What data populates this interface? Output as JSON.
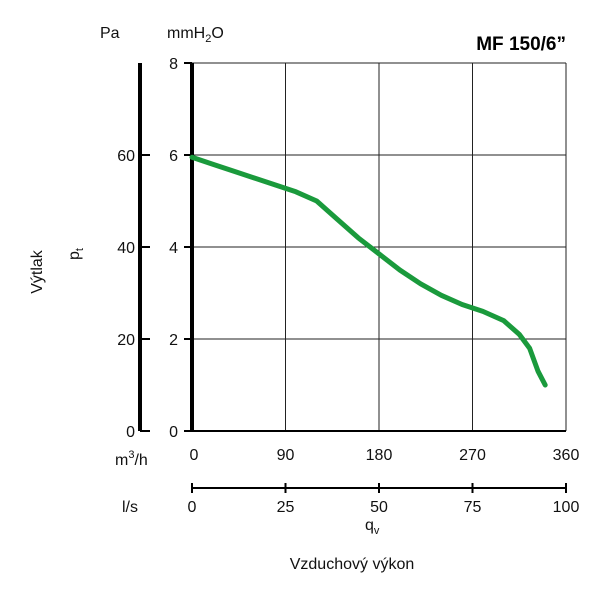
{
  "chart_data": {
    "type": "line",
    "title": "MF 150/6”",
    "ylabel": "Výtlak",
    "y_symbol": "p",
    "y_symbol_sub": "t",
    "y_unit_pa": "Pa",
    "y_unit_mmh2o_pre": "mmH",
    "y_unit_mmh2o_sub": "2",
    "y_unit_mmh2o_post": "O",
    "xlabel": "Vzduchový výkon",
    "x_symbol": "q",
    "x_symbol_sub": "v",
    "x_unit_m3h_pre": "m",
    "x_unit_m3h_sup": "3",
    "x_unit_m3h_post": "/h",
    "x_unit_ls": "l/s",
    "xlim_m3h": [
      0,
      360
    ],
    "ylim_mmh2o": [
      0,
      8
    ],
    "ylim_pa": [
      0,
      80
    ],
    "x_ticks_m3h": [
      "0",
      "90",
      "180",
      "270",
      "360"
    ],
    "x_ticks_ls": [
      "0",
      "25",
      "50",
      "75",
      "100"
    ],
    "y_ticks_mmh2o": [
      "0",
      "2",
      "4",
      "6",
      "8"
    ],
    "y_ticks_pa": [
      "0",
      "20",
      "40",
      "60"
    ],
    "grid": true,
    "line_color": "#1a9a3c",
    "series": [
      {
        "x": [
          0,
          20,
          40,
          60,
          80,
          100,
          120,
          140,
          160,
          180,
          200,
          220,
          240,
          260,
          280,
          300,
          315,
          325,
          333,
          340
        ],
        "y": [
          5.95,
          5.8,
          5.65,
          5.5,
          5.35,
          5.2,
          5.0,
          4.6,
          4.2,
          3.85,
          3.5,
          3.2,
          2.95,
          2.75,
          2.6,
          2.4,
          2.1,
          1.8,
          1.3,
          1.0
        ]
      }
    ]
  }
}
